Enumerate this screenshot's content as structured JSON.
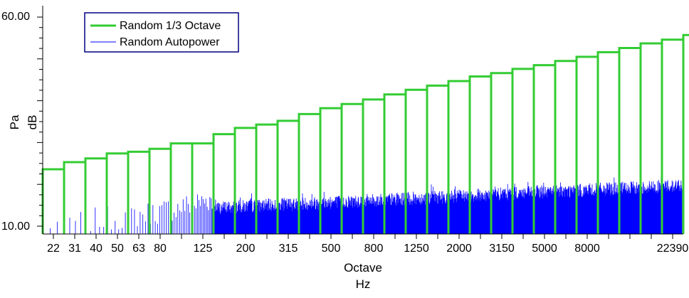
{
  "colors": {
    "octave": "#33cc33",
    "autopower": "#0000ff",
    "axis": "#000000",
    "legend_border": "#000080",
    "background": "#ffffff"
  },
  "legend": {
    "placement": "top-left",
    "items": [
      {
        "label": "Random 1/3 Octave",
        "color": "#33cc33"
      },
      {
        "label": "Random Autopower",
        "color": "#0000ff"
      }
    ]
  },
  "chart_data": {
    "type": "bar",
    "xlabel": "Octave",
    "xunit": "Hz",
    "ylabel_unit": "Pa",
    "ylabel_scale": "dB",
    "ylim": [
      10.0,
      60.0
    ],
    "y_tick_labels": [
      "60.00",
      "10.00"
    ],
    "x_tick_labels": [
      "22",
      "31",
      "40",
      "50",
      "63",
      "80",
      "125",
      "200",
      "315",
      "500",
      "800",
      "1250",
      "2000",
      "3150",
      "5000",
      "8000",
      "22390"
    ],
    "grid": false,
    "series": [
      {
        "name": "Random 1/3 Octave",
        "style": "step",
        "bands": [
          "20",
          "25",
          "31.5",
          "40",
          "50",
          "63",
          "80",
          "100",
          "125",
          "160",
          "200",
          "250",
          "315",
          "400",
          "500",
          "630",
          "800",
          "1000",
          "1250",
          "1600",
          "2000",
          "2500",
          "3150",
          "4000",
          "5000",
          "6300",
          "8000",
          "10000",
          "12500",
          "16000",
          "20000"
        ],
        "values": [
          23.6,
          25.3,
          26.2,
          27.4,
          27.8,
          28.5,
          29.8,
          29.8,
          32.0,
          33.5,
          34.3,
          35.2,
          36.8,
          38.2,
          39.2,
          40.3,
          41.5,
          42.6,
          43.6,
          44.7,
          45.8,
          46.6,
          47.6,
          48.5,
          49.5,
          50.5,
          51.6,
          52.6,
          53.7,
          54.6,
          55.7
        ]
      },
      {
        "name": "Random Autopower",
        "style": "narrowband",
        "x_range": [
          20,
          23000
        ],
        "level_at_125": 14.5,
        "level_at_22390": 20.0
      }
    ]
  }
}
